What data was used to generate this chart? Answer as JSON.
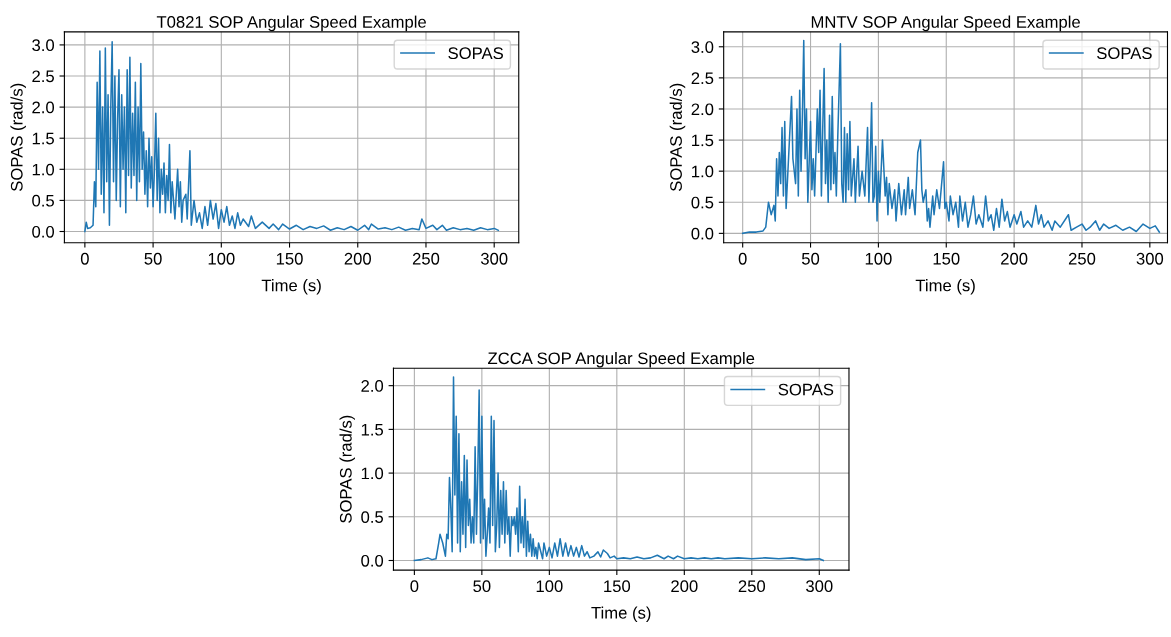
{
  "chart_data": [
    {
      "type": "line",
      "title": "T0821 SOP Angular Speed Example",
      "xlabel": "Time (s)",
      "ylabel": "SOPAS (rad/s)",
      "xlim": [
        -15,
        318
      ],
      "ylim": [
        -0.18,
        3.21
      ],
      "xticks": [
        0,
        50,
        100,
        150,
        200,
        250,
        300
      ],
      "yticks": [
        {
          "value": 0,
          "label": "0.0"
        },
        0.5,
        {
          "value": 1,
          "label": "1.0"
        },
        1.5,
        {
          "value": 2,
          "label": "2.0"
        },
        2.5,
        {
          "value": 3,
          "label": "3.0"
        }
      ],
      "grid": true,
      "legend": "top right",
      "series": [
        {
          "name": "SOPAS",
          "color": "#1f77b4",
          "x": [
            0,
            1,
            2,
            4,
            6,
            7,
            8,
            9,
            10,
            11,
            12,
            13,
            14,
            15,
            16,
            17,
            18,
            19,
            20,
            21,
            22,
            23,
            24,
            25,
            26,
            27,
            28,
            29,
            30,
            31,
            32,
            33,
            34,
            35,
            36,
            37,
            38,
            39,
            40,
            41,
            42,
            43,
            44,
            45,
            46,
            47,
            48,
            49,
            50,
            51,
            52,
            53,
            54,
            55,
            56,
            57,
            58,
            59,
            60,
            61,
            62,
            63,
            64,
            66,
            68,
            69,
            70,
            71,
            72,
            74,
            75,
            77,
            78,
            80,
            82,
            84,
            86,
            88,
            90,
            92,
            94,
            96,
            98,
            100,
            102,
            104,
            106,
            108,
            110,
            112,
            114,
            116,
            120,
            122,
            125,
            130,
            135,
            138,
            142,
            145,
            150,
            155,
            160,
            165,
            170,
            175,
            180,
            185,
            190,
            195,
            200,
            205,
            208,
            210,
            215,
            220,
            225,
            230,
            235,
            240,
            245,
            247,
            250,
            255,
            258,
            262,
            265,
            270,
            275,
            280,
            285,
            290,
            295,
            300,
            303
          ],
          "values": [
            0.0,
            0.15,
            0.05,
            0.06,
            0.1,
            0.8,
            0.4,
            2.4,
            1.0,
            2.9,
            0.6,
            2.0,
            0.3,
            2.95,
            0.8,
            2.2,
            0.1,
            2.0,
            3.05,
            0.8,
            2.5,
            0.5,
            1.8,
            2.6,
            0.4,
            2.2,
            1.0,
            2.0,
            0.3,
            2.6,
            0.9,
            2.8,
            0.7,
            1.9,
            0.9,
            2.4,
            0.5,
            2.0,
            0.8,
            2.7,
            1.0,
            1.6,
            0.6,
            1.3,
            0.4,
            1.5,
            0.7,
            1.2,
            0.4,
            1.0,
            1.9,
            0.5,
            1.5,
            0.3,
            1.0,
            0.6,
            1.1,
            0.3,
            0.9,
            0.5,
            1.4,
            0.3,
            0.8,
            0.2,
            1.0,
            0.4,
            0.8,
            0.15,
            0.5,
            0.6,
            0.2,
            1.3,
            0.1,
            0.5,
            0.15,
            0.3,
            0.05,
            0.4,
            0.1,
            0.5,
            0.2,
            0.45,
            0.05,
            0.35,
            0.15,
            0.4,
            0.1,
            0.25,
            0.05,
            0.3,
            0.1,
            0.2,
            0.08,
            0.25,
            0.05,
            0.15,
            0.05,
            0.12,
            0.03,
            0.12,
            0.04,
            0.1,
            0.03,
            0.08,
            0.05,
            0.09,
            0.02,
            0.06,
            0.03,
            0.08,
            0.02,
            0.1,
            0.03,
            0.12,
            0.04,
            0.06,
            0.03,
            0.07,
            0.02,
            0.05,
            0.03,
            0.2,
            0.05,
            0.1,
            0.03,
            0.1,
            0.02,
            0.06,
            0.03,
            0.05,
            0.02,
            0.06,
            0.03,
            0.05,
            0.02
          ]
        }
      ]
    },
    {
      "type": "line",
      "title": "MNTV SOP Angular Speed Example",
      "xlabel": "Time (s)",
      "ylabel": "SOPAS (rad/s)",
      "xlim": [
        -14,
        313
      ],
      "ylim": [
        -0.15,
        3.24
      ],
      "xticks": [
        0,
        50,
        100,
        150,
        200,
        250,
        300
      ],
      "yticks": [
        {
          "value": 0,
          "label": "0.0"
        },
        0.5,
        {
          "value": 1,
          "label": "1.0"
        },
        1.5,
        {
          "value": 2,
          "label": "2.0"
        },
        2.5,
        {
          "value": 3,
          "label": "3.0"
        }
      ],
      "grid": true,
      "legend": "top right",
      "series": [
        {
          "name": "SOPAS",
          "color": "#1f77b4",
          "x": [
            0,
            5,
            10,
            15,
            17,
            19,
            21,
            23,
            24,
            25,
            26,
            27,
            28,
            29,
            30,
            31,
            32,
            34,
            36,
            37,
            39,
            40,
            41,
            42,
            43,
            44,
            45,
            46,
            47,
            48,
            50,
            51,
            52,
            53,
            55,
            56,
            57,
            58,
            59,
            60,
            61,
            62,
            63,
            64,
            65,
            66,
            67,
            68,
            69,
            70,
            72,
            73,
            74,
            75,
            76,
            77,
            78,
            79,
            80,
            82,
            83,
            85,
            86,
            88,
            90,
            92,
            93,
            94,
            95,
            96,
            97,
            98,
            99,
            100,
            101,
            103,
            105,
            106,
            107,
            108,
            110,
            112,
            113,
            115,
            117,
            119,
            120,
            122,
            123,
            125,
            127,
            129,
            131,
            132,
            133,
            135,
            136,
            137,
            138,
            140,
            141,
            143,
            145,
            148,
            149,
            150,
            152,
            153,
            155,
            157,
            159,
            160,
            162,
            164,
            166,
            168,
            170,
            172,
            174,
            177,
            179,
            181,
            183,
            185,
            187,
            189,
            191,
            193,
            195,
            197,
            200,
            202,
            205,
            207,
            210,
            213,
            216,
            218,
            220,
            222,
            225,
            228,
            230,
            234,
            240,
            242,
            246,
            250,
            253,
            256,
            260,
            263,
            266,
            270,
            275,
            280,
            285,
            290,
            295,
            300,
            304,
            307
          ],
          "values": [
            0.0,
            0.02,
            0.02,
            0.04,
            0.1,
            0.5,
            0.3,
            0.45,
            0.2,
            1.2,
            0.6,
            1.3,
            0.8,
            1.7,
            0.6,
            1.8,
            0.4,
            1.3,
            2.2,
            1.2,
            0.8,
            2.0,
            0.6,
            2.3,
            1.0,
            1.9,
            3.1,
            1.2,
            2.0,
            0.5,
            1.8,
            0.7,
            1.2,
            0.6,
            2.0,
            1.3,
            2.3,
            0.6,
            1.7,
            2.65,
            0.8,
            1.5,
            0.5,
            1.9,
            0.7,
            2.2,
            0.8,
            1.3,
            0.6,
            1.5,
            3.05,
            0.8,
            0.5,
            1.7,
            0.5,
            1.6,
            0.7,
            1.8,
            0.6,
            1.2,
            0.5,
            1.4,
            0.6,
            1.0,
            0.6,
            1.7,
            0.5,
            1.2,
            2.1,
            0.5,
            0.6,
            1.4,
            0.2,
            1.0,
            0.5,
            1.5,
            0.6,
            0.9,
            0.3,
            0.8,
            0.4,
            0.7,
            0.2,
            0.8,
            0.3,
            0.7,
            0.3,
            0.9,
            0.4,
            0.7,
            0.3,
            1.3,
            1.5,
            0.7,
            0.5,
            0.7,
            0.2,
            0.4,
            0.1,
            0.6,
            0.3,
            0.7,
            0.4,
            1.15,
            0.4,
            0.5,
            0.2,
            0.6,
            0.3,
            0.5,
            0.1,
            0.6,
            0.2,
            0.5,
            0.1,
            0.3,
            0.6,
            0.15,
            0.3,
            0.1,
            0.6,
            0.2,
            0.3,
            0.05,
            0.4,
            0.1,
            0.55,
            0.2,
            0.35,
            0.1,
            0.3,
            0.15,
            0.35,
            0.1,
            0.2,
            0.1,
            0.45,
            0.15,
            0.3,
            0.1,
            0.2,
            0.05,
            0.2,
            0.1,
            0.3,
            0.05,
            0.1,
            0.15,
            0.05,
            0.1,
            0.2,
            0.05,
            0.15,
            0.08,
            0.13,
            0.05,
            0.1,
            0.03,
            0.15,
            0.08,
            0.12,
            0.02
          ]
        }
      ]
    },
    {
      "type": "line",
      "title": "ZCCA SOP Angular Speed Example",
      "xlabel": "Time (s)",
      "ylabel": "SOPAS (rad/s)",
      "xlim": [
        -15.5,
        322
      ],
      "ylim": [
        -0.11,
        2.2
      ],
      "xticks": [
        0,
        50,
        100,
        150,
        200,
        250,
        300
      ],
      "yticks": [
        {
          "value": 0,
          "label": "0.0"
        },
        0.5,
        {
          "value": 1,
          "label": "1.0"
        },
        1.5,
        {
          "value": 2,
          "label": "2.0"
        }
      ],
      "grid": true,
      "legend": "top right",
      "series": [
        {
          "name": "SOPAS",
          "color": "#1f77b4",
          "x": [
            0,
            5,
            10,
            13,
            16,
            18,
            19,
            20,
            21,
            23,
            24,
            25,
            26,
            27,
            28,
            29,
            30,
            31,
            32,
            33,
            34,
            35,
            36,
            37,
            38,
            39,
            40,
            41,
            42,
            43,
            44,
            45,
            46,
            47,
            48,
            49,
            50,
            51,
            52,
            53,
            54,
            55,
            56,
            57,
            58,
            59,
            60,
            61,
            62,
            63,
            64,
            65,
            66,
            67,
            68,
            69,
            70,
            71,
            72,
            73,
            74,
            75,
            76,
            77,
            78,
            79,
            80,
            81,
            82,
            83,
            84,
            85,
            86,
            87,
            88,
            89,
            90,
            91,
            92,
            95,
            96,
            98,
            100,
            102,
            104,
            106,
            108,
            110,
            112,
            114,
            116,
            118,
            120,
            122,
            124,
            126,
            128,
            130,
            133,
            136,
            138,
            140,
            143,
            145,
            148,
            150,
            155,
            160,
            165,
            170,
            175,
            180,
            185,
            188,
            192,
            195,
            200,
            205,
            210,
            215,
            220,
            225,
            230,
            240,
            250,
            260,
            270,
            280,
            290,
            300,
            303
          ],
          "values": [
            0.0,
            0.01,
            0.03,
            0.01,
            0.02,
            0.2,
            0.3,
            0.25,
            0.2,
            0.05,
            0.3,
            0.25,
            0.95,
            0.6,
            0.1,
            2.1,
            0.75,
            1.65,
            0.2,
            1.45,
            0.1,
            0.9,
            0.3,
            1.2,
            0.15,
            1.15,
            0.4,
            0.7,
            0.2,
            0.5,
            0.2,
            1.3,
            0.3,
            1.0,
            1.95,
            0.2,
            1.65,
            0.25,
            0.7,
            0.05,
            0.3,
            0.6,
            0.2,
            1.65,
            0.4,
            1.6,
            0.1,
            0.4,
            1.0,
            0.15,
            0.8,
            0.3,
            0.9,
            0.2,
            0.8,
            0.3,
            0.5,
            0.05,
            0.5,
            0.4,
            0.5,
            0.3,
            0.6,
            0.1,
            0.85,
            0.2,
            0.5,
            0.15,
            0.7,
            0.05,
            0.45,
            0.1,
            0.3,
            0.05,
            0.25,
            0.05,
            0.15,
            0.02,
            0.2,
            0.02,
            0.2,
            0.05,
            0.15,
            0.03,
            0.2,
            0.05,
            0.25,
            0.05,
            0.2,
            0.05,
            0.17,
            0.05,
            0.15,
            0.04,
            0.17,
            0.05,
            0.1,
            0.03,
            0.05,
            0.1,
            0.04,
            0.12,
            0.08,
            0.03,
            0.05,
            0.02,
            0.03,
            0.02,
            0.04,
            0.02,
            0.03,
            0.06,
            0.02,
            0.05,
            0.02,
            0.05,
            0.02,
            0.03,
            0.02,
            0.03,
            0.02,
            0.03,
            0.02,
            0.03,
            0.02,
            0.03,
            0.02,
            0.03,
            0.01,
            0.02,
            0.0
          ]
        }
      ]
    }
  ]
}
